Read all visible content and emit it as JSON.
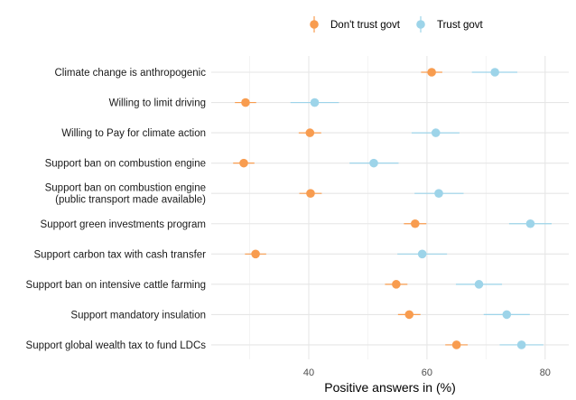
{
  "chart_data": {
    "type": "scatter",
    "subtype": "dot-and-errorbar",
    "title": "",
    "xlabel": "Positive answers in (%)",
    "ylabel": "",
    "xlim": [
      23.5,
      84
    ],
    "xticks": [
      40,
      60,
      80
    ],
    "grid": true,
    "legend_position": "top",
    "categories": [
      [
        "Climate change is anthropogenic"
      ],
      [
        "Willing to limit driving"
      ],
      [
        "Willing to Pay for climate action"
      ],
      [
        "Support ban on combustion engine"
      ],
      [
        "Support ban on combustion engine",
        "(public transport made available)"
      ],
      [
        "Support green investments program"
      ],
      [
        "Support carbon tax with cash transfer"
      ],
      [
        "Support ban on intensive cattle farming"
      ],
      [
        "Support mandatory insulation"
      ],
      [
        "Support global wealth tax to fund LDCs"
      ]
    ],
    "series": [
      {
        "name": "Don't trust govt",
        "color": "#F89C4F",
        "values": [
          60.8,
          29.3,
          40.2,
          29.0,
          40.3,
          58.0,
          31.0,
          54.8,
          57.0,
          65.0
        ],
        "ci_low": [
          59.0,
          27.5,
          38.3,
          27.2,
          38.4,
          56.1,
          29.2,
          52.9,
          55.1,
          63.1
        ],
        "ci_high": [
          62.6,
          31.1,
          42.1,
          30.8,
          42.2,
          59.9,
          32.8,
          56.7,
          58.9,
          66.9
        ]
      },
      {
        "name": "Trust govt",
        "color": "#9DD4E9",
        "values": [
          71.5,
          41.0,
          61.5,
          51.0,
          62.0,
          77.5,
          59.2,
          68.8,
          73.5,
          76.0
        ],
        "ci_low": [
          67.6,
          36.9,
          57.4,
          46.9,
          57.9,
          73.9,
          55.0,
          64.9,
          69.6,
          72.3
        ],
        "ci_high": [
          75.3,
          45.1,
          65.5,
          55.2,
          66.2,
          81.1,
          63.4,
          72.7,
          77.4,
          79.7
        ]
      }
    ]
  }
}
